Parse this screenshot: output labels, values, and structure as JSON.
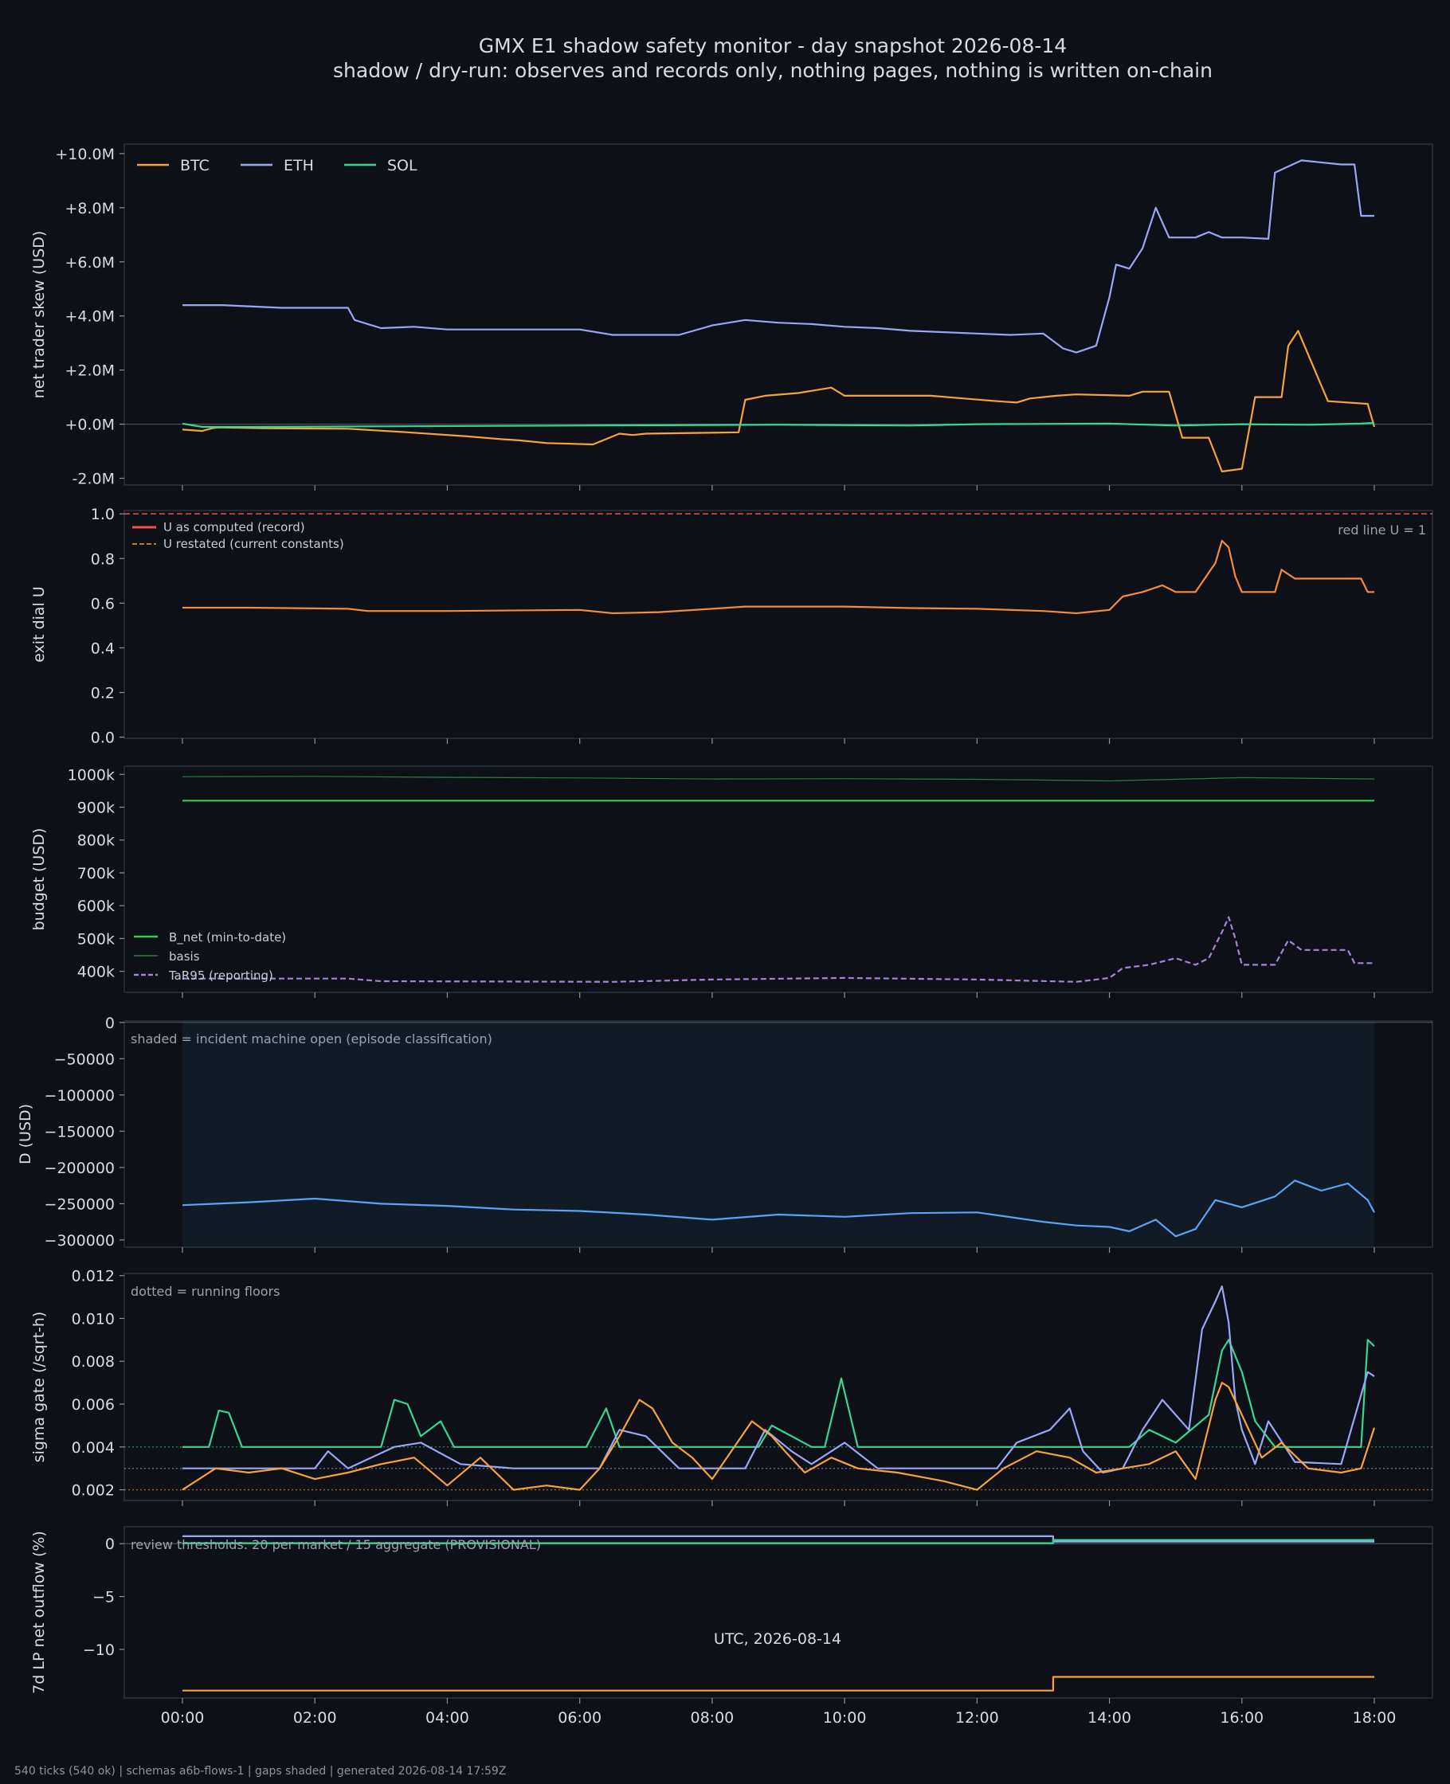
{
  "footer": "540 ticks (540 ok) | schemas a6b-flows-1 | gaps shaded | generated 2026-08-14 17:59Z",
  "colors": {
    "background": "#0d1017",
    "btc": "#f7a23b",
    "eth": "#9aa7f5",
    "sol": "#34d98f",
    "u_record": "#f05050",
    "u_restated": "#f5a623",
    "u_line": "#f58a3a",
    "b_net": "#3cc94a",
    "basis": "#2a7d3a",
    "tar95": "#a882d8",
    "d": "#5ba3f5",
    "shade": "#111b26"
  },
  "chart_data": [
    {
      "type": "line",
      "title": "GMX E1 shadow safety monitor - day snapshot 2026-08-14",
      "subtitle": "shadow / dry-run: observes and records only, nothing pages, nothing is written on-chain",
      "ylabel": "net trader skew (USD)",
      "ylim": [
        -2.25,
        10.35
      ],
      "yticks": [
        -2,
        0,
        2,
        4,
        6,
        8,
        10
      ],
      "ytick_labels": [
        "-2.0M",
        "+0.0M",
        "+2.0M",
        "+4.0M",
        "+6.0M",
        "+8.0M",
        "+10.0M"
      ],
      "legend": "top-left",
      "series": [
        {
          "name": "BTC",
          "color": "#f7a23b",
          "x": [
            0,
            0.3,
            0.45,
            0.55,
            1.2,
            2.5,
            3.4,
            4.3,
            4.8,
            5.1,
            5.5,
            6.2,
            6.6,
            6.8,
            7.0,
            8.4,
            8.5,
            8.8,
            9.3,
            9.8,
            10.0,
            10.5,
            11.3,
            11.8,
            12.3,
            12.6,
            12.8,
            13.2,
            13.5,
            14.3,
            14.5,
            14.9,
            15.1,
            15.5,
            15.7,
            16.0,
            16.2,
            16.6,
            16.7,
            16.85,
            17.3,
            17.9,
            18.0
          ],
          "y": [
            -0.2,
            -0.25,
            -0.15,
            -0.12,
            -0.15,
            -0.17,
            -0.3,
            -0.45,
            -0.55,
            -0.6,
            -0.7,
            -0.75,
            -0.35,
            -0.4,
            -0.35,
            -0.3,
            0.9,
            1.05,
            1.15,
            1.35,
            1.05,
            1.05,
            1.05,
            0.95,
            0.85,
            0.8,
            0.95,
            1.05,
            1.1,
            1.05,
            1.2,
            1.2,
            -0.5,
            -0.5,
            -1.75,
            -1.65,
            1.0,
            1.0,
            2.9,
            3.45,
            0.85,
            0.75,
            -0.1
          ]
        },
        {
          "name": "ETH",
          "color": "#9aa7f5",
          "x": [
            0,
            0.6,
            1.5,
            2.5,
            2.6,
            2.8,
            3.0,
            3.5,
            4.0,
            5.0,
            6.0,
            6.5,
            7.0,
            7.5,
            8.0,
            8.5,
            9.0,
            9.5,
            10.0,
            10.5,
            11.0,
            12.0,
            12.5,
            13.0,
            13.3,
            13.5,
            13.8,
            14.0,
            14.1,
            14.3,
            14.5,
            14.7,
            14.9,
            15.3,
            15.5,
            15.7,
            16.0,
            16.4,
            16.5,
            16.9,
            17.5,
            17.7,
            17.8,
            18.0
          ],
          "y": [
            4.4,
            4.4,
            4.3,
            4.3,
            3.85,
            3.7,
            3.55,
            3.6,
            3.5,
            3.5,
            3.5,
            3.3,
            3.3,
            3.3,
            3.65,
            3.85,
            3.75,
            3.7,
            3.6,
            3.55,
            3.45,
            3.35,
            3.3,
            3.35,
            2.8,
            2.65,
            2.9,
            4.7,
            5.9,
            5.75,
            6.5,
            8.0,
            6.9,
            6.9,
            7.1,
            6.9,
            6.9,
            6.85,
            9.3,
            9.75,
            9.6,
            9.6,
            7.7,
            7.7
          ]
        },
        {
          "name": "SOL",
          "color": "#34d98f",
          "x": [
            0,
            0.3,
            1.0,
            3.0,
            6.0,
            9.0,
            11.0,
            12.0,
            14.0,
            15.0,
            16.0,
            17.0,
            17.8,
            18.0
          ],
          "y": [
            0.02,
            -0.1,
            -0.1,
            -0.08,
            -0.05,
            -0.02,
            -0.05,
            0.0,
            0.02,
            -0.05,
            0.0,
            -0.02,
            0.02,
            0.05
          ]
        }
      ]
    },
    {
      "type": "line",
      "ylabel": "exit dial U",
      "ylim": [
        -0.005,
        1.015
      ],
      "yticks": [
        0,
        0.2,
        0.4,
        0.6,
        0.8,
        1.0
      ],
      "ytick_labels": [
        "0.0",
        "0.2",
        "0.4",
        "0.6",
        "0.8",
        "1.0"
      ],
      "legend": "top-left",
      "annotations": [
        {
          "text": "red line U = 1",
          "position": "right"
        }
      ],
      "reference_lines": [
        {
          "name": "U as computed (record)",
          "y": 1.0,
          "color": "#f05050",
          "style": "dashed"
        },
        {
          "name": "U restated (current constants)",
          "color": "#f5a623",
          "style": "dashed"
        }
      ],
      "series": [
        {
          "name": "U",
          "color": "#f58a3a",
          "x": [
            0,
            1.0,
            2.5,
            2.8,
            4.0,
            6.0,
            6.5,
            7.2,
            8.0,
            8.5,
            10.0,
            11.0,
            12.0,
            13.0,
            13.5,
            14.0,
            14.2,
            14.5,
            14.8,
            15.0,
            15.3,
            15.6,
            15.7,
            15.8,
            15.9,
            16.0,
            16.2,
            16.5,
            16.6,
            16.8,
            17.2,
            17.8,
            17.9,
            18.0
          ],
          "y": [
            0.58,
            0.58,
            0.575,
            0.565,
            0.565,
            0.57,
            0.555,
            0.56,
            0.575,
            0.585,
            0.585,
            0.578,
            0.575,
            0.565,
            0.555,
            0.57,
            0.63,
            0.65,
            0.68,
            0.65,
            0.65,
            0.78,
            0.88,
            0.85,
            0.72,
            0.65,
            0.65,
            0.65,
            0.75,
            0.71,
            0.71,
            0.71,
            0.65,
            0.65
          ]
        }
      ]
    },
    {
      "type": "line",
      "ylabel": "budget (USD)",
      "ylim": [
        336000,
        1025000
      ],
      "yticks": [
        400000,
        500000,
        600000,
        700000,
        800000,
        900000,
        1000000
      ],
      "ytick_labels": [
        "400k",
        "500k",
        "600k",
        "700k",
        "800k",
        "900k",
        "1000k"
      ],
      "legend": "bottom-left",
      "series": [
        {
          "name": "B_net (min-to-date)",
          "color": "#3cc94a",
          "x": [
            0,
            18
          ],
          "y": [
            920000,
            920000
          ]
        },
        {
          "name": "basis",
          "color": "#2a7d3a",
          "x": [
            0,
            2,
            4,
            6,
            8,
            10,
            12,
            14,
            16,
            18
          ],
          "y": [
            993000,
            994000,
            991000,
            989000,
            986000,
            987000,
            985000,
            980000,
            990000,
            986000
          ]
        },
        {
          "name": "TaR95 (reporting)",
          "color": "#a882d8",
          "style": "dashed",
          "x": [
            0,
            2.5,
            3.0,
            6.5,
            8.0,
            10.0,
            12.0,
            13.5,
            14.0,
            14.2,
            14.6,
            15.0,
            15.3,
            15.5,
            15.7,
            15.8,
            15.9,
            16.0,
            16.5,
            16.7,
            16.9,
            17.6,
            17.7,
            18.0
          ],
          "y": [
            378000,
            378000,
            370000,
            368000,
            375000,
            380000,
            375000,
            368000,
            380000,
            410000,
            420000,
            440000,
            420000,
            440000,
            520000,
            565000,
            500000,
            420000,
            420000,
            495000,
            465000,
            465000,
            425000,
            425000
          ]
        }
      ]
    },
    {
      "type": "line",
      "ylabel": "D (USD)",
      "ylim": [
        -310000,
        2000
      ],
      "yticks": [
        -300000,
        -250000,
        -200000,
        -150000,
        -100000,
        -50000,
        0
      ],
      "ytick_labels": [
        "−300000",
        "−250000",
        "−200000",
        "−150000",
        "−100000",
        "−50000",
        "0"
      ],
      "annotations": [
        {
          "text": "shaded = incident machine open (episode classification)",
          "position": "top-left"
        }
      ],
      "shaded_interval": [
        0,
        18
      ],
      "series": [
        {
          "name": "D",
          "color": "#5ba3f5",
          "x": [
            0,
            1,
            2,
            3,
            4,
            5,
            6,
            7,
            8,
            9,
            10,
            11,
            12,
            13,
            13.5,
            14,
            14.3,
            14.7,
            15,
            15.3,
            15.6,
            16,
            16.5,
            16.8,
            17.2,
            17.6,
            17.9,
            18
          ],
          "y": [
            -252000,
            -248000,
            -243000,
            -250000,
            -253000,
            -258000,
            -260000,
            -265000,
            -272000,
            -265000,
            -268000,
            -263000,
            -262000,
            -275000,
            -280000,
            -282000,
            -288000,
            -272000,
            -295000,
            -285000,
            -245000,
            -255000,
            -240000,
            -218000,
            -232000,
            -222000,
            -245000,
            -262000
          ]
        }
      ]
    },
    {
      "type": "line",
      "ylabel": "sigma gate (/sqrt-h)",
      "ylim": [
        0.0015,
        0.0121
      ],
      "yticks": [
        0.002,
        0.004,
        0.006,
        0.008,
        0.01,
        0.012
      ],
      "ytick_labels": [
        "0.002",
        "0.004",
        "0.006",
        "0.008",
        "0.010",
        "0.012"
      ],
      "annotations": [
        {
          "text": "dotted = running floors",
          "position": "top-left"
        }
      ],
      "reference_lines": [
        {
          "y": 0.004,
          "color": "#34d98f",
          "style": "dotted"
        },
        {
          "y": 0.003,
          "color": "#9aa7f5",
          "style": "dotted"
        },
        {
          "y": 0.002,
          "color": "#f7a23b",
          "style": "dotted"
        }
      ],
      "series": [
        {
          "name": "SOL",
          "color": "#34d98f",
          "x": [
            0,
            0.4,
            0.55,
            0.7,
            0.9,
            3.0,
            3.2,
            3.4,
            3.6,
            3.9,
            4.1,
            4.4,
            6.1,
            6.4,
            6.6,
            8.7,
            8.9,
            9.5,
            9.7,
            9.95,
            10.2,
            14.3,
            14.6,
            15.0,
            15.5,
            15.7,
            15.8,
            16.0,
            16.2,
            16.5,
            17.8,
            17.9,
            18.0
          ],
          "y": [
            0.004,
            0.004,
            0.0057,
            0.0056,
            0.004,
            0.004,
            0.0062,
            0.006,
            0.0045,
            0.0052,
            0.004,
            0.004,
            0.004,
            0.0058,
            0.004,
            0.004,
            0.005,
            0.004,
            0.004,
            0.0072,
            0.004,
            0.004,
            0.0048,
            0.0042,
            0.0055,
            0.0085,
            0.009,
            0.0075,
            0.0052,
            0.004,
            0.004,
            0.009,
            0.0087
          ]
        },
        {
          "name": "ETH",
          "color": "#9aa7f5",
          "x": [
            0,
            2,
            2.2,
            2.5,
            3.2,
            3.6,
            4.2,
            5.0,
            6.3,
            6.6,
            7.0,
            7.5,
            8.5,
            8.8,
            9.2,
            9.5,
            10.0,
            10.5,
            12.3,
            12.6,
            13.1,
            13.4,
            13.6,
            13.9,
            14.2,
            14.5,
            14.8,
            15.2,
            15.4,
            15.6,
            15.7,
            15.8,
            15.9,
            16.0,
            16.2,
            16.4,
            16.8,
            17.5,
            17.9,
            18.0
          ],
          "y": [
            0.003,
            0.003,
            0.0038,
            0.003,
            0.004,
            0.0042,
            0.0032,
            0.003,
            0.003,
            0.0048,
            0.0045,
            0.003,
            0.003,
            0.0048,
            0.0038,
            0.0032,
            0.0042,
            0.003,
            0.003,
            0.0042,
            0.0048,
            0.0058,
            0.0038,
            0.0028,
            0.003,
            0.0048,
            0.0062,
            0.0048,
            0.0095,
            0.0108,
            0.0115,
            0.0098,
            0.0062,
            0.0048,
            0.0032,
            0.0052,
            0.0033,
            0.0032,
            0.0075,
            0.0073
          ]
        },
        {
          "name": "BTC",
          "color": "#f7a23b",
          "x": [
            0,
            0.5,
            1.0,
            1.5,
            2.0,
            2.5,
            3.0,
            3.5,
            4.0,
            4.5,
            5.0,
            5.5,
            6.0,
            6.3,
            6.6,
            6.9,
            7.1,
            7.4,
            7.7,
            8.0,
            8.6,
            8.9,
            9.1,
            9.4,
            9.8,
            10.2,
            10.8,
            11.5,
            12.0,
            12.4,
            12.9,
            13.4,
            13.8,
            14.2,
            14.6,
            15.0,
            15.3,
            15.6,
            15.7,
            15.8,
            16.0,
            16.3,
            16.6,
            17.0,
            17.5,
            17.8,
            18.0
          ],
          "y": [
            0.002,
            0.003,
            0.0028,
            0.003,
            0.0025,
            0.0028,
            0.0032,
            0.0035,
            0.0022,
            0.0035,
            0.002,
            0.0022,
            0.002,
            0.003,
            0.0045,
            0.0062,
            0.0058,
            0.0042,
            0.0035,
            0.0025,
            0.0052,
            0.0045,
            0.0038,
            0.0028,
            0.0035,
            0.003,
            0.0028,
            0.0024,
            0.002,
            0.003,
            0.0038,
            0.0035,
            0.0028,
            0.003,
            0.0032,
            0.0038,
            0.0025,
            0.0062,
            0.007,
            0.0068,
            0.0055,
            0.0035,
            0.0042,
            0.003,
            0.0028,
            0.003,
            0.0049
          ]
        }
      ]
    },
    {
      "type": "line",
      "ylabel": "7d LP net outflow (%)",
      "xlabel": "UTC, 2026-08-14",
      "ylim": [
        -14.6,
        1.6
      ],
      "yticks": [
        -10,
        -5,
        0
      ],
      "ytick_labels": [
        "−10",
        "−5",
        "0"
      ],
      "annotations": [
        {
          "text": "review thresholds: 20 per market / 15 aggregate (PROVISIONAL)",
          "position": "top-left"
        }
      ],
      "xticks": [
        0,
        2,
        4,
        6,
        8,
        10,
        12,
        14,
        16,
        18
      ],
      "xtick_labels": [
        "00:00",
        "02:00",
        "04:00",
        "06:00",
        "08:00",
        "10:00",
        "12:00",
        "14:00",
        "16:00",
        "18:00"
      ],
      "series": [
        {
          "name": "ETH",
          "color": "#9aa7f5",
          "x": [
            0,
            13.15,
            13.15,
            18
          ],
          "y": [
            0.7,
            0.7,
            0.2,
            0.2
          ]
        },
        {
          "name": "SOL",
          "color": "#34d98f",
          "x": [
            0,
            13.15,
            13.15,
            18
          ],
          "y": [
            0.05,
            0.05,
            0.35,
            0.35
          ]
        },
        {
          "name": "BTC",
          "color": "#f7a23b",
          "x": [
            0,
            13.15,
            13.15,
            18
          ],
          "y": [
            -13.9,
            -13.9,
            -12.6,
            -12.6
          ]
        }
      ]
    }
  ]
}
